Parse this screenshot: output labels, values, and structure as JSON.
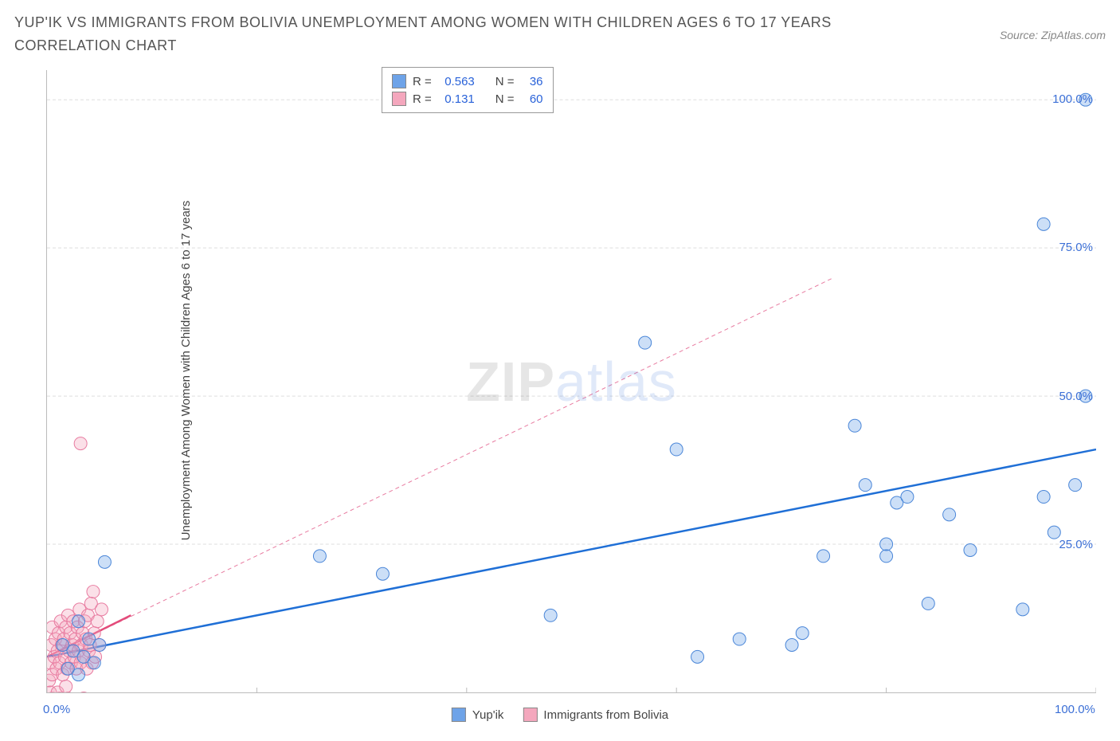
{
  "title": "YUP'IK VS IMMIGRANTS FROM BOLIVIA UNEMPLOYMENT AMONG WOMEN WITH CHILDREN AGES 6 TO 17 YEARS CORRELATION CHART",
  "source": "Source: ZipAtlas.com",
  "ylabel": "Unemployment Among Women with Children Ages 6 to 17 years",
  "watermark_a": "ZIP",
  "watermark_b": "atlas",
  "chart": {
    "type": "scatter",
    "background_color": "#ffffff",
    "grid_color": "#dddddd",
    "axis_color": "#bbbbbb",
    "xlim": [
      0,
      100
    ],
    "ylim": [
      0,
      105
    ],
    "xtick_positions": [
      0,
      20,
      40,
      60,
      80,
      100
    ],
    "xtick_labels": [
      "0.0%",
      "",
      "",
      "",
      "",
      "100.0%"
    ],
    "ytick_positions": [
      25,
      50,
      75,
      100
    ],
    "ytick_labels": [
      "25.0%",
      "50.0%",
      "75.0%",
      "100.0%"
    ],
    "marker_radius": 8,
    "marker_fill_opacity": 0.35,
    "series": [
      {
        "name": "Yup'ik",
        "color": "#6ea3e8",
        "stroke": "#4a86d8",
        "R": "0.563",
        "N": "36",
        "trend": {
          "x1": 0,
          "y1": 6,
          "x2": 100,
          "y2": 41,
          "color": "#1f6fd6",
          "width": 2.5,
          "dash": ""
        },
        "points": [
          [
            1.5,
            8
          ],
          [
            2.5,
            7
          ],
          [
            3,
            12
          ],
          [
            3.5,
            6
          ],
          [
            4,
            9
          ],
          [
            4.5,
            5
          ],
          [
            5,
            8
          ],
          [
            2,
            4
          ],
          [
            3,
            3
          ],
          [
            5.5,
            22
          ],
          [
            26,
            23
          ],
          [
            32,
            20
          ],
          [
            48,
            13
          ],
          [
            57,
            59
          ],
          [
            60,
            41
          ],
          [
            62,
            6
          ],
          [
            66,
            9
          ],
          [
            71,
            8
          ],
          [
            72,
            10
          ],
          [
            74,
            23
          ],
          [
            77,
            45
          ],
          [
            78,
            35
          ],
          [
            80,
            23
          ],
          [
            80,
            25
          ],
          [
            81,
            32
          ],
          [
            82,
            33
          ],
          [
            84,
            15
          ],
          [
            86,
            30
          ],
          [
            88,
            24
          ],
          [
            93,
            14
          ],
          [
            95,
            33
          ],
          [
            96,
            27
          ],
          [
            98,
            35
          ],
          [
            99,
            50
          ],
          [
            95,
            79
          ],
          [
            99,
            100
          ]
        ]
      },
      {
        "name": "Immigrants from Bolivia",
        "color": "#f4a7bd",
        "stroke": "#e87ba0",
        "R": "0.131",
        "N": "60",
        "trend": {
          "x1": 0,
          "y1": 6,
          "x2": 75,
          "y2": 70,
          "color": "#e87ba0",
          "width": 1,
          "dash": "5 4"
        },
        "trend_solid": {
          "x1": 0,
          "y1": 6,
          "x2": 8,
          "y2": 13,
          "color": "#e34b7a",
          "width": 2.5
        },
        "points": [
          [
            0.2,
            2
          ],
          [
            0.3,
            5
          ],
          [
            0.4,
            8
          ],
          [
            0.5,
            3
          ],
          [
            0.5,
            11
          ],
          [
            0.7,
            6
          ],
          [
            0.8,
            9
          ],
          [
            0.9,
            4
          ],
          [
            1.0,
            7
          ],
          [
            1.1,
            10
          ],
          [
            1.2,
            5
          ],
          [
            1.3,
            12
          ],
          [
            1.4,
            8
          ],
          [
            1.5,
            3
          ],
          [
            1.6,
            9
          ],
          [
            1.7,
            6
          ],
          [
            1.8,
            11
          ],
          [
            1.9,
            4
          ],
          [
            2.0,
            13
          ],
          [
            2.1,
            7
          ],
          [
            2.2,
            10
          ],
          [
            2.3,
            5
          ],
          [
            2.4,
            8
          ],
          [
            2.5,
            12
          ],
          [
            2.6,
            6
          ],
          [
            2.7,
            9
          ],
          [
            2.8,
            4
          ],
          [
            2.9,
            11
          ],
          [
            3.0,
            7
          ],
          [
            3.1,
            14
          ],
          [
            3.2,
            5
          ],
          [
            3.3,
            8
          ],
          [
            3.4,
            10
          ],
          [
            3.5,
            6
          ],
          [
            3.6,
            12
          ],
          [
            3.7,
            9
          ],
          [
            3.8,
            4
          ],
          [
            3.9,
            13
          ],
          [
            4.0,
            7
          ],
          [
            4.1,
            8
          ],
          [
            4.2,
            15
          ],
          [
            4.3,
            5
          ],
          [
            4.4,
            17
          ],
          [
            4.5,
            10
          ],
          [
            4.6,
            6
          ],
          [
            4.8,
            12
          ],
          [
            5.0,
            8
          ],
          [
            5.2,
            14
          ],
          [
            0.5,
            -1
          ],
          [
            0.8,
            -2
          ],
          [
            1.2,
            -1
          ],
          [
            1.6,
            -3
          ],
          [
            2.0,
            -1
          ],
          [
            2.5,
            -2
          ],
          [
            3.0,
            -4
          ],
          [
            3.5,
            -1
          ],
          [
            0.3,
            0
          ],
          [
            1.0,
            0
          ],
          [
            1.8,
            1
          ],
          [
            3.2,
            42
          ]
        ]
      }
    ],
    "legend": {
      "series1_label": "Yup'ik",
      "series2_label": "Immigrants from Bolivia",
      "r_label": "R =",
      "n_label": "N ="
    }
  }
}
